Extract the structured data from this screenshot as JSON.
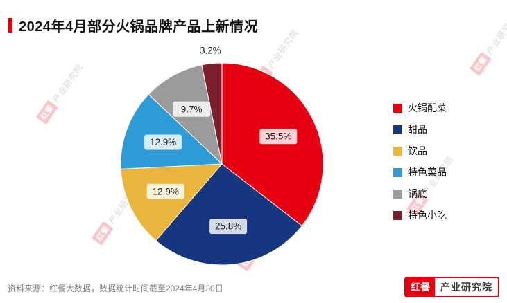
{
  "title": {
    "text": "2024年4月部分火锅品牌产品上新情况"
  },
  "footer": {
    "source": "资料来源：红餐大数据，数据统计时间截至2024年4月30日"
  },
  "logo": {
    "brand": "红餐",
    "suffix": "产业研究院"
  },
  "watermark": {
    "brand": "红餐",
    "suffix": "产业研究院"
  },
  "chart_data": {
    "type": "pie",
    "title": "2024年4月部分火锅品牌产品上新情况",
    "legend_position": "right",
    "direction": "clockwise",
    "start_angle": "top",
    "value_suffix": "%",
    "series": [
      {
        "label": "火锅配菜",
        "value": 35.5,
        "color": "#e60012"
      },
      {
        "label": "甜品",
        "value": 25.8,
        "color": "#16367f"
      },
      {
        "label": "饮品",
        "value": 12.9,
        "color": "#eab53c"
      },
      {
        "label": "特色菜品",
        "value": 12.9,
        "color": "#2d9bd6"
      },
      {
        "label": "锅底",
        "value": 9.7,
        "color": "#9b9b9b"
      },
      {
        "label": "特色小吃",
        "value": 3.2,
        "color": "#7a1f2b"
      }
    ]
  }
}
